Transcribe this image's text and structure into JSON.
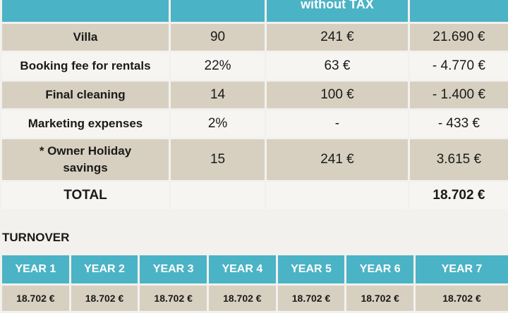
{
  "header": {
    "col1": "",
    "col2": "",
    "col3": "without TAX",
    "col4": ""
  },
  "rows": [
    {
      "label": "Villa",
      "qty": "90",
      "price": "241 €",
      "total": "21.690 €",
      "style": "beige"
    },
    {
      "label": "Booking fee for rentals",
      "qty": "22%",
      "price": "63 €",
      "total": "- 4.770 €",
      "style": "white"
    },
    {
      "label": "Final cleaning",
      "qty": "14",
      "price": "100 €",
      "total": "- 1.400 €",
      "style": "beige"
    },
    {
      "label": "Marketing expenses",
      "qty": "2%",
      "price": "-",
      "total": "- 433 €",
      "style": "white"
    },
    {
      "label": "* Owner Holiday savings",
      "qty": "15",
      "price": "241 €",
      "total": "3.615 €",
      "style": "beige"
    }
  ],
  "total": {
    "label": "TOTAL",
    "value": "18.702 €"
  },
  "turnover": {
    "title": "TURNOVER",
    "years": [
      "YEAR 1",
      "YEAR 2",
      "YEAR 3",
      "YEAR 4",
      "YEAR 5",
      "YEAR 6",
      "YEAR 7"
    ],
    "values": [
      "18.702 €",
      "18.702 €",
      "18.702 €",
      "18.702 €",
      "18.702 €",
      "18.702 €",
      "18.702 €"
    ]
  }
}
